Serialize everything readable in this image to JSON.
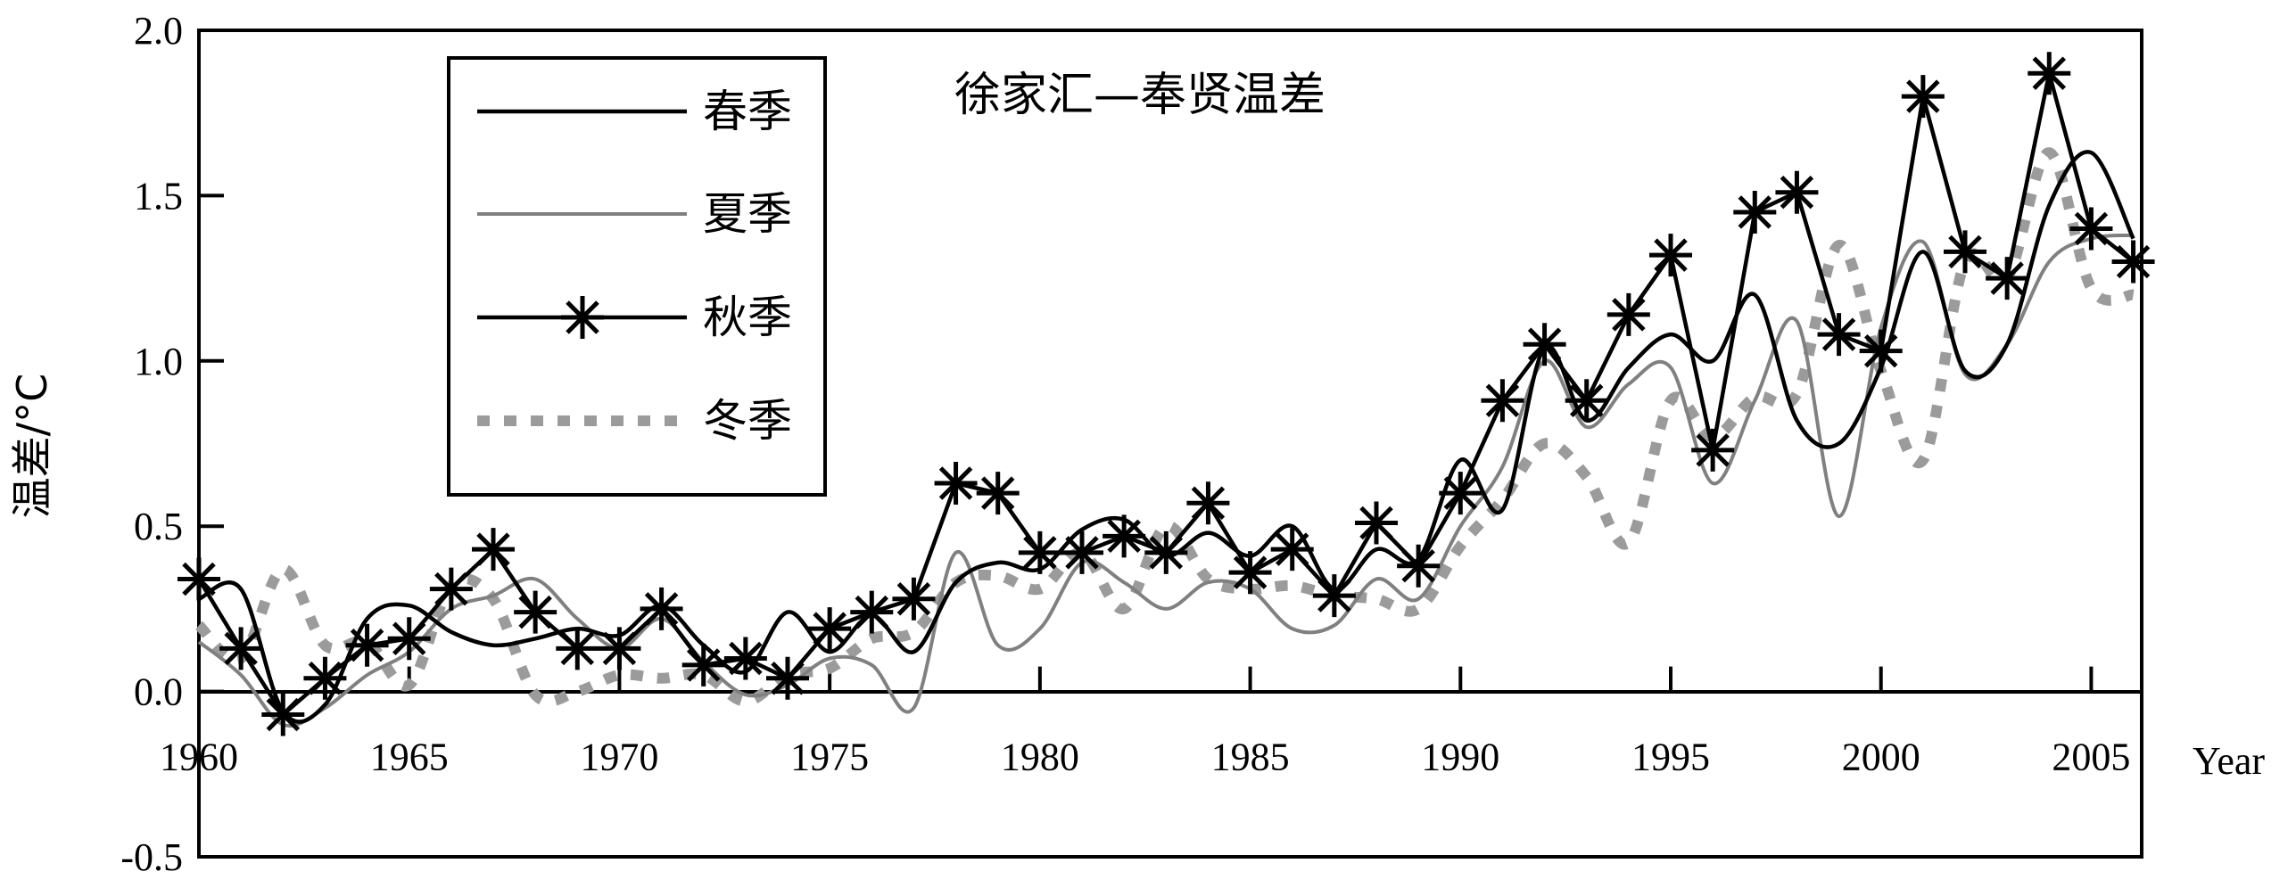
{
  "chart_data": {
    "type": "line",
    "title": "徐家汇—奉贤温差",
    "xlabel": "Year",
    "ylabel": "温差/°C",
    "xlim": [
      1960,
      2006.2
    ],
    "ylim": [
      -0.5,
      2.0
    ],
    "x_ticks": [
      1960,
      1965,
      1970,
      1975,
      1980,
      1985,
      1990,
      1995,
      2000,
      2005
    ],
    "y_ticks": [
      -0.5,
      0.0,
      0.5,
      1.0,
      1.5,
      2.0
    ],
    "y_tick_labels": [
      "-0.5",
      "0.0",
      "0.5",
      "1.0",
      "1.5",
      "2.0"
    ],
    "grid": false,
    "legend_position": "top-left",
    "x": [
      1960,
      1961,
      1962,
      1963,
      1964,
      1965,
      1966,
      1967,
      1968,
      1969,
      1970,
      1971,
      1972,
      1973,
      1974,
      1975,
      1976,
      1977,
      1978,
      1979,
      1980,
      1981,
      1982,
      1983,
      1984,
      1985,
      1986,
      1987,
      1988,
      1989,
      1990,
      1991,
      1992,
      1993,
      1994,
      1995,
      1996,
      1997,
      1998,
      1999,
      2000,
      2001,
      2002,
      2003,
      2004,
      2005,
      2006
    ],
    "series": [
      {
        "name": "春季",
        "color": "#000000",
        "style": "solid",
        "marker": "none",
        "values": [
          0.28,
          0.31,
          -0.06,
          -0.04,
          0.22,
          0.26,
          0.18,
          0.14,
          0.16,
          0.19,
          0.17,
          0.26,
          0.14,
          0.06,
          0.24,
          0.12,
          0.23,
          0.12,
          0.33,
          0.39,
          0.37,
          0.49,
          0.52,
          0.41,
          0.48,
          0.41,
          0.5,
          0.31,
          0.43,
          0.4,
          0.7,
          0.55,
          1.04,
          0.82,
          0.98,
          1.08,
          1.0,
          1.2,
          0.82,
          0.75,
          0.98,
          1.33,
          0.97,
          1.05,
          1.47,
          1.63,
          1.37
        ]
      },
      {
        "name": "夏季",
        "color": "#808080",
        "style": "solid",
        "marker": "none",
        "values": [
          0.15,
          0.05,
          -0.1,
          -0.05,
          0.05,
          0.12,
          0.25,
          0.29,
          0.34,
          0.22,
          0.13,
          0.22,
          0.09,
          -0.01,
          0.02,
          0.1,
          0.08,
          -0.05,
          0.42,
          0.14,
          0.19,
          0.39,
          0.33,
          0.25,
          0.33,
          0.31,
          0.19,
          0.2,
          0.34,
          0.28,
          0.5,
          0.68,
          1.0,
          0.8,
          0.93,
          0.98,
          0.63,
          0.88,
          1.12,
          0.53,
          1.1,
          1.36,
          0.96,
          1.05,
          1.3,
          1.37,
          1.38
        ]
      },
      {
        "name": "秋季",
        "color": "#000000",
        "style": "solid",
        "marker": "asterisk",
        "values": [
          0.34,
          0.13,
          -0.07,
          0.04,
          0.14,
          0.16,
          0.31,
          0.43,
          0.24,
          0.13,
          0.13,
          0.25,
          0.08,
          0.1,
          0.04,
          0.19,
          0.24,
          0.28,
          0.63,
          0.6,
          0.42,
          0.42,
          0.47,
          0.42,
          0.57,
          0.36,
          0.43,
          0.29,
          0.51,
          0.38,
          0.6,
          0.88,
          1.05,
          0.88,
          1.14,
          1.32,
          0.73,
          1.45,
          1.51,
          1.08,
          1.03,
          1.8,
          1.33,
          1.25,
          1.87,
          1.4,
          1.3
        ]
      },
      {
        "name": "冬季",
        "color": "#9b9b9b",
        "style": "dotted",
        "marker": "none",
        "values": [
          0.2,
          0.1,
          0.37,
          0.14,
          0.15,
          0.02,
          0.32,
          0.28,
          -0.01,
          0.0,
          0.05,
          0.04,
          0.05,
          -0.03,
          0.05,
          0.07,
          0.16,
          0.18,
          0.33,
          0.35,
          0.31,
          0.42,
          0.25,
          0.5,
          0.34,
          0.31,
          0.32,
          0.29,
          0.28,
          0.25,
          0.44,
          0.58,
          0.75,
          0.65,
          0.45,
          0.88,
          0.77,
          0.89,
          0.9,
          1.35,
          0.97,
          0.7,
          1.3,
          1.25,
          1.63,
          1.22,
          1.2
        ]
      }
    ]
  }
}
